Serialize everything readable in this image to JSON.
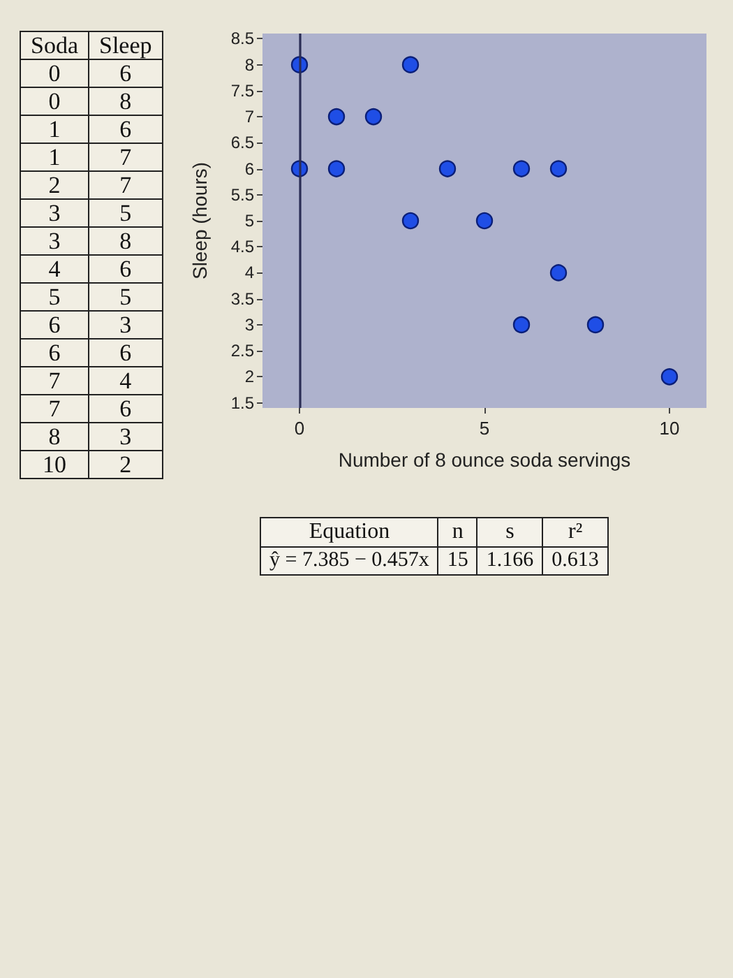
{
  "chart_data": {
    "type": "scatter",
    "xlabel": "Number of 8 ounce soda servings",
    "ylabel": "Sleep (hours)",
    "x": [
      0,
      0,
      1,
      1,
      2,
      3,
      3,
      4,
      5,
      6,
      6,
      7,
      7,
      8,
      10
    ],
    "values": [
      6,
      8,
      6,
      7,
      7,
      5,
      8,
      6,
      5,
      3,
      6,
      4,
      6,
      3,
      2
    ],
    "color": "#1f4ee6",
    "marker": "circle",
    "grid": false,
    "xlim": [
      -1,
      11
    ],
    "xticks": [
      0,
      5,
      10
    ],
    "ylim": [
      1.4,
      8.6
    ],
    "yticks": [
      1.5,
      2,
      2.5,
      3,
      3.5,
      4,
      4.5,
      5,
      5.5,
      6,
      6.5,
      7,
      7.5,
      8,
      8.5
    ],
    "ref_lines": [
      {
        "axis": "x",
        "value": 0
      }
    ],
    "annotations": [
      "Soda",
      "Sleep",
      "0",
      "6",
      "0",
      "8",
      "1",
      "6",
      "1",
      "7",
      "2",
      "7",
      "3",
      "5",
      "3",
      "8",
      "4",
      "6",
      "5",
      "5",
      "6",
      "3",
      "6",
      "6",
      "7",
      "4",
      "7",
      "6",
      "8",
      "3",
      "10",
      "2",
      "Equation",
      "n",
      "s",
      "r²",
      "ŷ = 7.385 − 0.457x",
      "15",
      "1.166",
      "0.613"
    ]
  }
}
